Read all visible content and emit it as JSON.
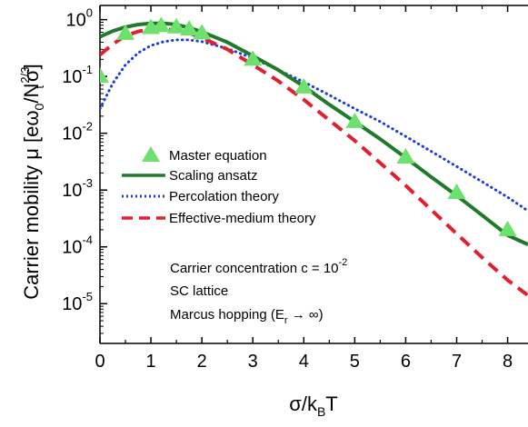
{
  "chart_data": {
    "type": "line",
    "title": "",
    "xlabel": {
      "main": "σ/k",
      "sub": "B",
      "tail": "T"
    },
    "ylabel": {
      "prefix": "Carrier mobility μ [eω",
      "sub0": "0",
      "slash": "/N",
      "sup": "2/3",
      "sub1": "t",
      "suffix": "σ]"
    },
    "xlim": [
      0,
      8.4
    ],
    "ylog": true,
    "ylim_exp": [
      -5.7,
      0.25
    ],
    "xticks": [
      0,
      1,
      2,
      3,
      4,
      5,
      6,
      7,
      8
    ],
    "xtick_labels": [
      "0",
      "1",
      "2",
      "3",
      "4",
      "5",
      "6",
      "7",
      "8"
    ],
    "yticks_exp": [
      0,
      -1,
      -2,
      -3,
      -4,
      -5
    ],
    "ytick_labels": [
      {
        "base": "10",
        "exp": "0"
      },
      {
        "base": "10",
        "exp": "-1"
      },
      {
        "base": "10",
        "exp": "-2"
      },
      {
        "base": "10",
        "exp": "-3"
      },
      {
        "base": "10",
        "exp": "-4"
      },
      {
        "base": "10",
        "exp": "-5"
      }
    ],
    "legend_position": "center-left",
    "series": [
      {
        "name": "Master equation",
        "kind": "markers",
        "marker": "triangle",
        "color": "#6ee06e",
        "x": [
          0,
          0.5,
          1,
          1.2,
          1.5,
          1.75,
          2,
          3,
          4,
          5,
          6,
          7,
          8
        ],
        "y": [
          0.1,
          0.57,
          0.72,
          0.78,
          0.74,
          0.68,
          0.58,
          0.2,
          0.065,
          0.016,
          0.0038,
          0.0009,
          0.0002
        ]
      },
      {
        "name": "Scaling ansatz",
        "kind": "line",
        "style": "solid",
        "color": "#1f7a2a",
        "x": [
          0,
          0.25,
          0.5,
          0.75,
          1,
          1.25,
          1.5,
          1.75,
          2,
          2.5,
          3,
          3.5,
          4,
          4.5,
          5,
          5.5,
          6,
          6.5,
          7,
          7.5,
          8,
          8.4
        ],
        "y": [
          0.5,
          0.63,
          0.74,
          0.82,
          0.86,
          0.86,
          0.82,
          0.72,
          0.61,
          0.4,
          0.23,
          0.13,
          0.067,
          0.032,
          0.016,
          0.0079,
          0.0037,
          0.0017,
          0.0008,
          0.00036,
          0.00016,
          0.00011
        ]
      },
      {
        "name": "Percolation theory",
        "kind": "line",
        "style": "dotted",
        "color": "#1f3fd6",
        "x": [
          0,
          0.25,
          0.5,
          0.75,
          1,
          1.25,
          1.5,
          1.75,
          2,
          2.5,
          3,
          3.5,
          4,
          4.5,
          5,
          5.5,
          6,
          6.5,
          7,
          7.5,
          8,
          8.4
        ],
        "y": [
          0.027,
          0.075,
          0.16,
          0.26,
          0.35,
          0.41,
          0.44,
          0.44,
          0.41,
          0.31,
          0.21,
          0.13,
          0.08,
          0.047,
          0.027,
          0.016,
          0.0088,
          0.0048,
          0.0026,
          0.0014,
          0.00075,
          0.00043
        ]
      },
      {
        "name": "Effective-medium theory",
        "kind": "line",
        "style": "dashed",
        "color": "#e02030",
        "x": [
          0,
          0.25,
          0.5,
          0.75,
          1,
          1.25,
          1.5,
          1.75,
          2,
          2.5,
          3,
          3.5,
          4,
          4.5,
          5,
          5.5,
          6,
          6.5,
          7,
          7.5,
          8,
          8.4
        ],
        "y": [
          0.24,
          0.37,
          0.52,
          0.62,
          0.68,
          0.69,
          0.65,
          0.58,
          0.48,
          0.3,
          0.16,
          0.083,
          0.039,
          0.017,
          0.0074,
          0.003,
          0.0012,
          0.00045,
          0.00017,
          6.5e-05,
          2.6e-05,
          1.4e-05
        ]
      }
    ],
    "annotations": [
      {
        "text": "Carrier concentration c = 10",
        "sup": "-2"
      },
      {
        "text": "SC lattice"
      },
      {
        "prefix": "Marcus hopping (E",
        "sub": "r",
        "suffix": " → ∞)"
      }
    ]
  }
}
